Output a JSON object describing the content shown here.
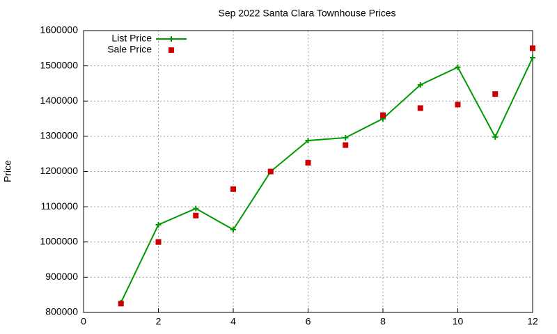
{
  "chart_data": {
    "type": "line",
    "title": "Sep 2022 Santa Clara Townhouse Prices",
    "y_label": "Price",
    "x": [
      1,
      2,
      3,
      4,
      5,
      6,
      7,
      8,
      9,
      10,
      11,
      12
    ],
    "series": [
      {
        "name": "List Price",
        "color": "#009900",
        "style": "linespoints",
        "values": [
          828000,
          1049000,
          1095000,
          1035000,
          1200000,
          1288000,
          1296000,
          1350000,
          1446000,
          1496000,
          1298000,
          1523000
        ]
      },
      {
        "name": "Sale Price",
        "color": "#cc0000",
        "style": "points",
        "values": [
          825000,
          1000000,
          1075000,
          1150000,
          1200000,
          1225000,
          1275000,
          1360000,
          1380000,
          1390000,
          1420000,
          1550000
        ]
      }
    ],
    "xlim": [
      0,
      12
    ],
    "xticks": [
      0,
      2,
      4,
      6,
      8,
      10,
      12
    ],
    "ylim": [
      800000,
      1600000
    ],
    "yticks": [
      800000,
      900000,
      1000000,
      1100000,
      1200000,
      1300000,
      1400000,
      1500000,
      1600000
    ],
    "grid": true,
    "legend": "top-left"
  }
}
